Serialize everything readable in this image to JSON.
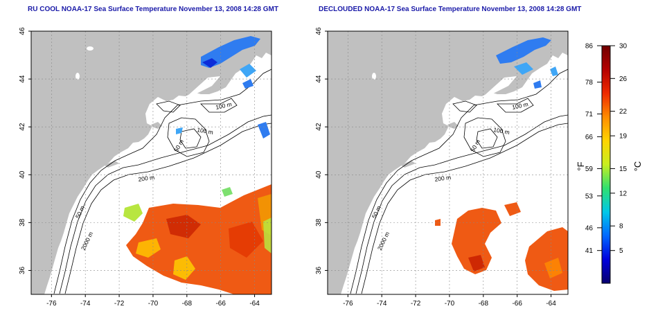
{
  "titles": {
    "left": "RU COOL NOAA-17 Sea Surface Temperature November 13, 2008 14:28 GMT",
    "right": "DECLOUDED NOAA-17 Sea Surface Temperature November 13, 2008 14:28 GMT"
  },
  "axes": {
    "lon_ticks": [
      "-76",
      "-74",
      "-72",
      "-70",
      "-68",
      "-66",
      "-64"
    ],
    "lat_ticks": [
      "36",
      "38",
      "40",
      "42",
      "44",
      "46"
    ],
    "lon_range": [
      -77.2,
      -63.0
    ],
    "lat_range": [
      35.0,
      46.0
    ]
  },
  "contour_labels": {
    "left": [
      "100 m",
      "100 m",
      "50 m",
      "200 m",
      "50 m",
      "2000 m"
    ],
    "right": [
      "100 m",
      "100 m",
      "50 m",
      "200 m",
      "50 m",
      "2000 m"
    ]
  },
  "colorbar": {
    "fahrenheit": [
      "86",
      "78",
      "71",
      "66",
      "59",
      "53",
      "46",
      "41"
    ],
    "celsius": [
      "30",
      "26",
      "22",
      "19",
      "15",
      "12",
      "8",
      "5"
    ],
    "f_unit": "°F",
    "c_unit": "°C",
    "colors": [
      "#08006e",
      "#0000dd",
      "#0068ff",
      "#00c8e8",
      "#30e070",
      "#c8ee20",
      "#ffd400",
      "#ff8c00",
      "#ee2a00",
      "#b40000",
      "#700000"
    ]
  },
  "colors": {
    "land": "#c0c0c0",
    "water": "#ffffff",
    "warm": "#ef5a14",
    "cool": "#2f7cf0"
  }
}
